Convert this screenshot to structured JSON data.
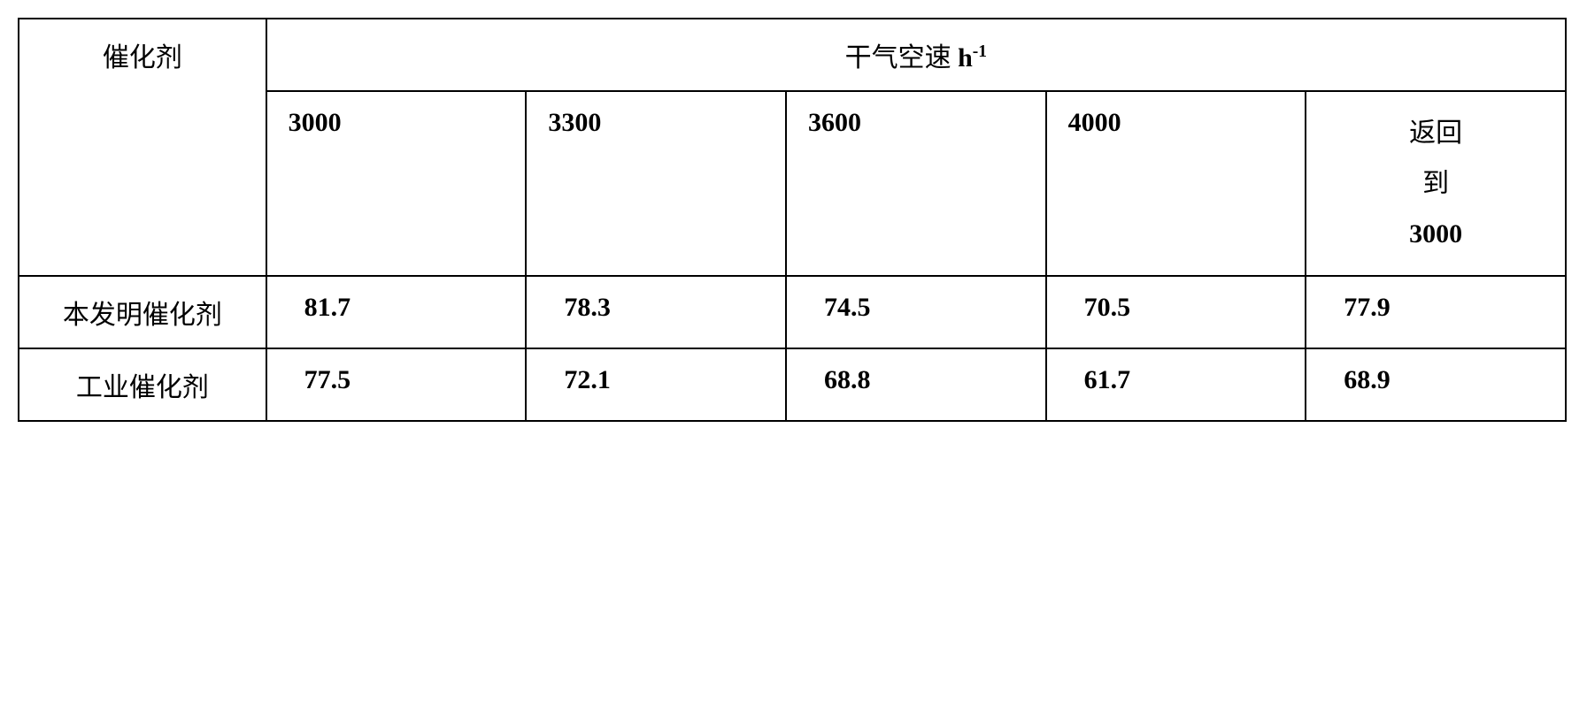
{
  "table": {
    "row_header_label": "催化剂",
    "group_header_prefix": "干气空速 ",
    "group_header_unit_base": "h",
    "group_header_unit_exp": "-1",
    "columns": [
      "3000",
      "3300",
      "3600",
      "4000"
    ],
    "last_col_line1": "返回",
    "last_col_line2": "到",
    "last_col_line3": "3000",
    "rows": [
      {
        "label": "本发明催化剂",
        "values": [
          "81.7",
          "78.3",
          "74.5",
          "70.5",
          "77.9"
        ]
      },
      {
        "label": "工业催化剂",
        "values": [
          "77.5",
          "72.1",
          "68.8",
          "61.7",
          "68.9"
        ]
      }
    ],
    "border_color": "#000000",
    "background_color": "#ffffff",
    "font_size_pt": 22
  }
}
